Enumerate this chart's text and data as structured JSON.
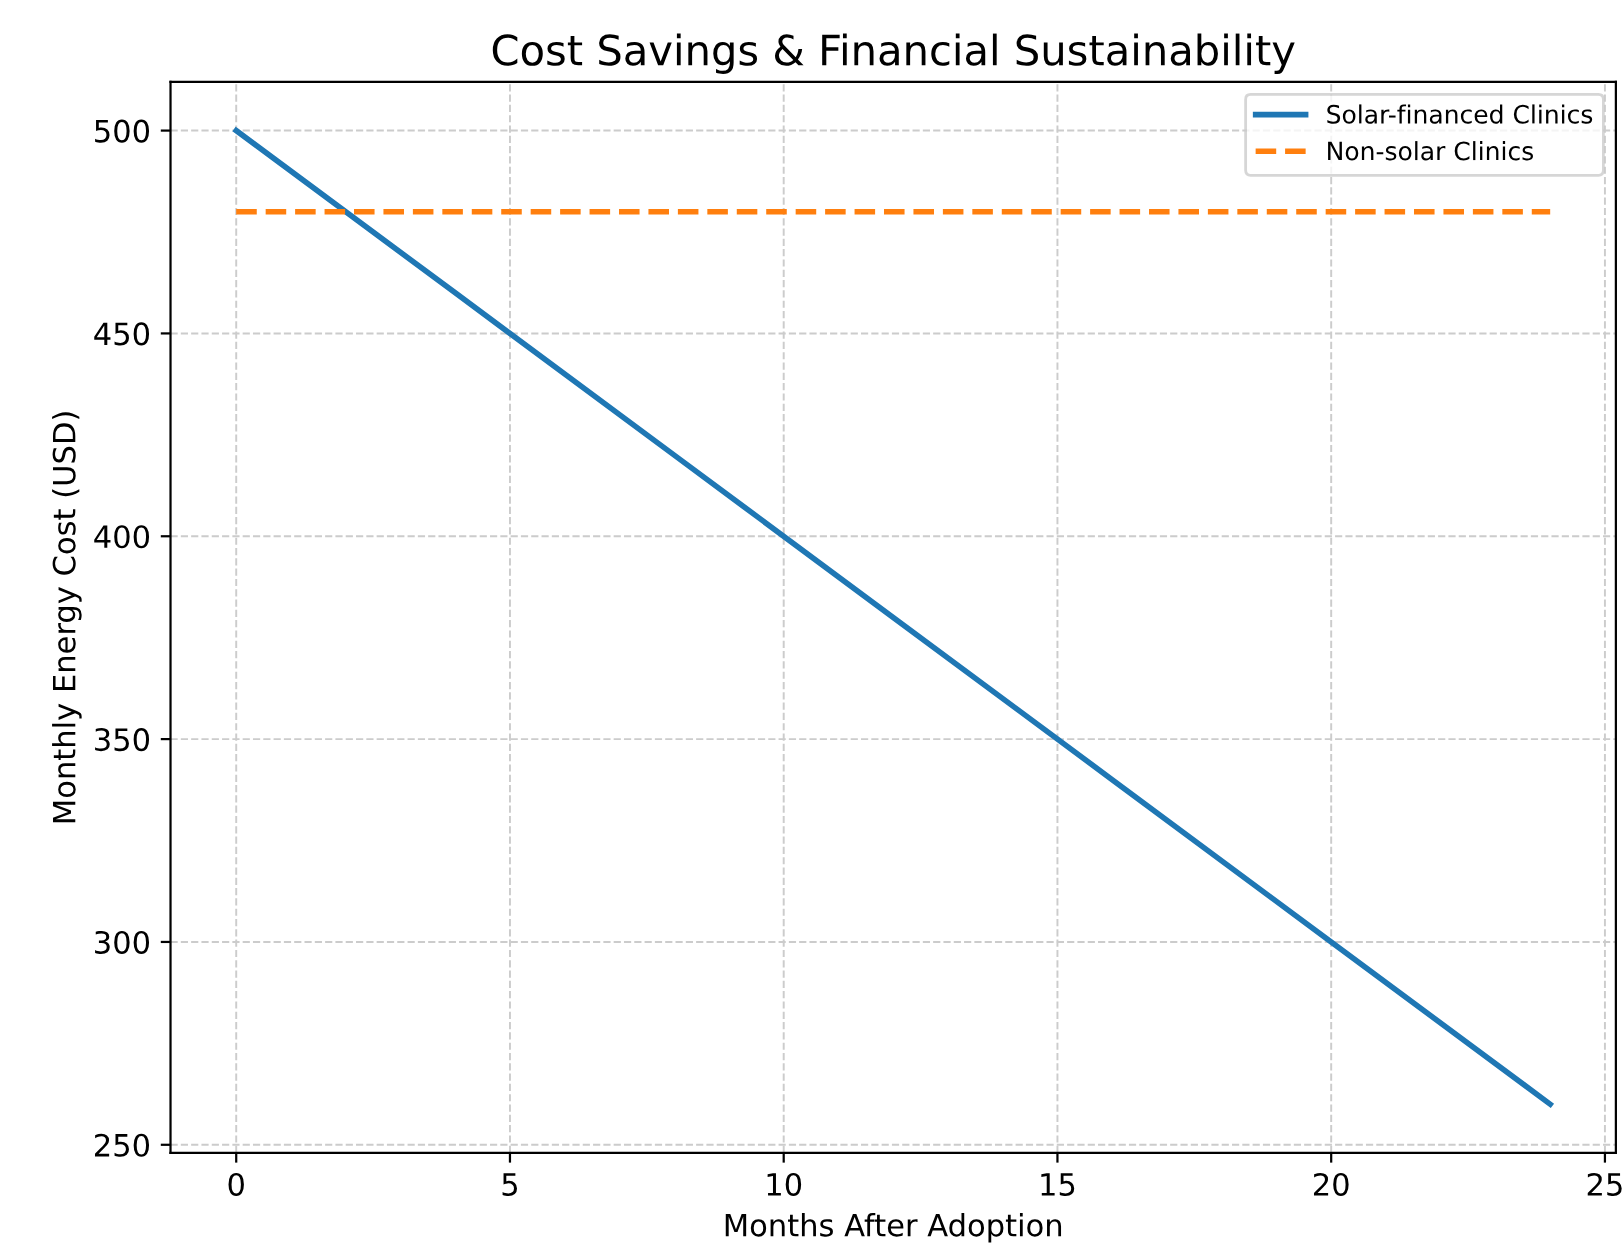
{
  "chart_data": {
    "type": "line",
    "title": "Cost Savings & Financial Sustainability",
    "xlabel": "Months After Adoption",
    "ylabel": "Monthly Energy Cost (USD)",
    "x": [
      0,
      4,
      8,
      12,
      16,
      20,
      24
    ],
    "series": [
      {
        "name": "Solar-financed Clinics",
        "color": "#1f77b4",
        "values": [
          500,
          460,
          420,
          380,
          340,
          300,
          260
        ],
        "line_style": "solid"
      },
      {
        "name": "Non-solar Clinics",
        "color": "#ff7f0e",
        "values": [
          480,
          480,
          480,
          480,
          480,
          480,
          480
        ],
        "line_style": "dashed"
      }
    ],
    "xlim": [
      -1.2,
      25.2
    ],
    "xticks": [
      0,
      5,
      10,
      15,
      20,
      25
    ],
    "ylim": [
      248,
      512
    ],
    "yticks": [
      250,
      300,
      350,
      400,
      450,
      500
    ],
    "grid": true,
    "legend": "top right",
    "marker": "none"
  }
}
